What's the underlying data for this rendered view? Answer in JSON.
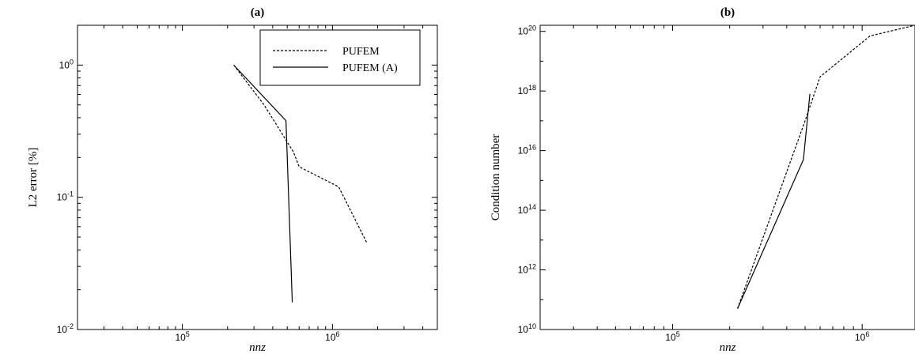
{
  "chart_data": [
    {
      "panel": "(a)",
      "type": "line",
      "title": "(a)",
      "xlabel": "nnz",
      "ylabel": "L2 error [%]",
      "xscale": "log",
      "yscale": "log",
      "xlim": [
        20000,
        5000000
      ],
      "ylim": [
        0.01,
        2
      ],
      "xticks": [
        {
          "value": 100000,
          "base": "10",
          "exp": "5"
        },
        {
          "value": 1000000,
          "base": "10",
          "exp": "6"
        }
      ],
      "yticks": [
        {
          "value": 0.01,
          "base": "10",
          "exp": "-2"
        },
        {
          "value": 0.1,
          "base": "10",
          "exp": "-1"
        },
        {
          "value": 1,
          "base": "10",
          "exp": "0"
        }
      ],
      "grid": false,
      "legend": "top-right",
      "series": [
        {
          "name": "PUFEM",
          "style": "dashed",
          "color": "#000000",
          "x": [
            220000,
            350000,
            550000,
            600000,
            1100000,
            1700000
          ],
          "y": [
            1.0,
            0.5,
            0.22,
            0.17,
            0.12,
            0.045
          ]
        },
        {
          "name": "PUFEM (A)",
          "style": "solid",
          "color": "#000000",
          "x": [
            220000,
            490000,
            540000
          ],
          "y": [
            1.0,
            0.38,
            0.016
          ]
        }
      ]
    },
    {
      "panel": "(b)",
      "type": "line",
      "title": "(b)",
      "xlabel": "nnz",
      "ylabel": "Condition number",
      "xscale": "log",
      "yscale": "log",
      "xlim": [
        20000,
        1900000
      ],
      "ylim": [
        10000000000.0,
        1.6e+20
      ],
      "xticks": [
        {
          "value": 100000,
          "base": "10",
          "exp": "5"
        },
        {
          "value": 1000000,
          "base": "10",
          "exp": "6"
        }
      ],
      "yticks": [
        {
          "value": 10000000000.0,
          "base": "10",
          "exp": "10"
        },
        {
          "value": 1000000000000.0,
          "base": "10",
          "exp": "12"
        },
        {
          "value": 100000000000000.0,
          "base": "10",
          "exp": "14"
        },
        {
          "value": 1e+16,
          "base": "10",
          "exp": "16"
        },
        {
          "value": 1e+18,
          "base": "10",
          "exp": "18"
        },
        {
          "value": 1e+20,
          "base": "10",
          "exp": "20"
        }
      ],
      "grid": false,
      "series": [
        {
          "name": "PUFEM",
          "style": "dashed",
          "color": "#000000",
          "x": [
            220000,
            500000,
            600000,
            1100000,
            1900000
          ],
          "y": [
            50000000000.0,
            1e+17,
            3e+18,
            7e+19,
            1.6e+20
          ]
        },
        {
          "name": "PUFEM (A)",
          "style": "solid",
          "color": "#000000",
          "x": [
            220000,
            490000,
            530000
          ],
          "y": [
            50000000000.0,
            5000000000000000.0,
            8e+17
          ]
        }
      ]
    }
  ]
}
